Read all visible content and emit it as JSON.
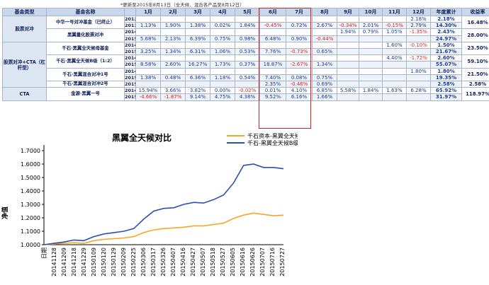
{
  "note": "*更新至2015年8月13日（全天候、混合各产品至8月12日）",
  "table": {
    "headers": [
      "基金类型",
      "基金名称",
      "",
      "1月",
      "2月",
      "3月",
      "4月",
      "5月",
      "6月",
      "7月",
      "8月",
      "9月",
      "10月",
      "11月",
      "12月",
      "年度累计",
      "收益率"
    ],
    "groups": [
      {
        "category": "股票对冲",
        "funds": [
          {
            "name": "中华一号对冲基金（已终止）",
            "ret": "16.48%",
            "rows": [
              {
                "year": "2012",
                "months": [
                  "",
                  "",
                  "",
                  "",
                  "",
                  "",
                  "",
                  "",
                  "",
                  "",
                  "",
                  "2.18%"
                ],
                "total": "2.18%"
              },
              {
                "year": "2013",
                "months": [
                  "1.13%",
                  "1.90%",
                  "1.38%",
                  "0.02%",
                  "1.84%",
                  "-0.45%",
                  "0.72%",
                  "2.67%",
                  "-0.34%",
                  "2.01%",
                  "-0.15%",
                  "2.79%"
                ],
                "total": "14.30%"
              }
            ]
          },
          {
            "name": "黑翼量化股票对冲",
            "ret": "28.00%",
            "rows": [
              {
                "year": "2014",
                "months": [
                  "",
                  "",
                  "",
                  "",
                  "",
                  "",
                  "",
                  "",
                  "1.94%",
                  "0.79%",
                  "1.05%",
                  "-1.35%"
                ],
                "total": "2.43%"
              },
              {
                "year": "2015",
                "months": [
                  "5.68%",
                  "2.13%",
                  "6.39%",
                  "0.75%",
                  "0.98%",
                  "6.48%",
                  "0.90%",
                  "-0.44%",
                  "",
                  "",
                  "",
                  ""
                ],
                "total": "24.97%"
              }
            ]
          }
        ]
      },
      {
        "category": "股票对冲+CTA（杠杆型）",
        "funds": [
          {
            "name": "千石·黑翼全天候母基金",
            "ret": "23.50%",
            "rows": [
              {
                "year": "2014",
                "months": [
                  "",
                  "",
                  "",
                  "",
                  "",
                  "",
                  "",
                  "",
                  "",
                  "",
                  "1.60%",
                  "-0.10%"
                ],
                "total": "1.50%"
              },
              {
                "year": "2015",
                "months": [
                  "3.25%",
                  "1.34%",
                  "6.31%",
                  "1.06%",
                  "0.53%",
                  "7.76%",
                  "-0.73%",
                  "0.65%",
                  "",
                  "",
                  "",
                  ""
                ],
                "total": "21.67%"
              }
            ]
          },
          {
            "name": "千石·黑翼全天候B级（1:2）",
            "ret": "59.10%",
            "rows": [
              {
                "year": "2014",
                "months": [
                  "",
                  "",
                  "",
                  "",
                  "",
                  "",
                  "",
                  "",
                  "",
                  "",
                  "4.40%",
                  "-1.72%"
                ],
                "total": "2.60%"
              },
              {
                "year": "2015",
                "months": [
                  "8.58%",
                  "2.60%",
                  "16.27%",
                  "1.73%",
                  "0.37%",
                  "18.87%",
                  "-2.67%",
                  "1.34%",
                  "",
                  "",
                  "",
                  ""
                ],
                "total": "55.07%"
              }
            ]
          },
          {
            "name": "千石·黑翼混合对冲1号",
            "ret": "21.50%",
            "rows": [
              {
                "year": "2014",
                "months": [
                  "",
                  "",
                  "",
                  "",
                  "",
                  "",
                  "",
                  "",
                  "",
                  "",
                  "",
                  "1.80%"
                ],
                "total": "1.80%"
              },
              {
                "year": "2015",
                "months": [
                  "1.38%",
                  "0.48%",
                  "6.36%",
                  "1.18%",
                  "0.54%",
                  "7.40%",
                  "0.08%",
                  "0.75%",
                  "",
                  "",
                  "",
                  ""
                ],
                "total": "19.35%"
              }
            ]
          },
          {
            "name": "千石·黑翼混合对冲2号",
            "ret": "2.58%",
            "rows": [
              {
                "year": "2015",
                "months": [
                  "",
                  "",
                  "",
                  "",
                  "",
                  "2.35%",
                  "-0.46%",
                  "0.69%",
                  "",
                  "",
                  "",
                  ""
                ],
                "total": "2.58%"
              }
            ]
          }
        ]
      },
      {
        "category": "CTA",
        "funds": [
          {
            "name": "金源·黑翼一号",
            "ret": "118.97%",
            "rows": [
              {
                "year": "2014",
                "months": [
                  "15.94%",
                  "3.66%",
                  "3.82%",
                  "0.00%",
                  "-0.02%",
                  "0.01%",
                  "4.10%",
                  "6.85%",
                  "5.58%",
                  "1.84%",
                  "1.63%",
                  "6.28%"
                ],
                "total": "65.92%"
              },
              {
                "year": "2015",
                "months": [
                  "-4.66%",
                  "-1.87%",
                  "9.14%",
                  "4.75%",
                  "4.38%",
                  "9.52%",
                  "6.16%",
                  "1.66%",
                  "",
                  "",
                  "",
                  ""
                ],
                "total": "31.97%"
              }
            ]
          }
        ]
      }
    ]
  },
  "chart_data": {
    "type": "line",
    "title": "黑翼全天候对比",
    "ylabel": "净值",
    "xlabel": "",
    "first_tick_label": "日期",
    "ylim": [
      1.0,
      1.7
    ],
    "yticks": [
      "1.0000",
      "1.1000",
      "1.2000",
      "1.3000",
      "1.4000",
      "1.5000",
      "1.6000",
      "1.7000"
    ],
    "x_tick_labels": [
      "20141128",
      "20141209",
      "20141218",
      "20141229",
      "20150109",
      "20150120",
      "20150129",
      "20150209",
      "20150225",
      "20150306",
      "20150317",
      "20150326",
      "20150407",
      "20150416",
      "20150427",
      "20150507",
      "20150518",
      "20150527",
      "20150605",
      "20150616",
      "20150626",
      "20150707",
      "20150716",
      "20150727"
    ],
    "legend_position": "top-center",
    "series": [
      {
        "name": "千石资本-黑翼全天候",
        "color": "#f5a623",
        "x_index": [
          0,
          1,
          2,
          3,
          4,
          5,
          6,
          7,
          8,
          9,
          10,
          11,
          12,
          13,
          14,
          15,
          16,
          17,
          18,
          19,
          20,
          21,
          22,
          23,
          24
        ],
        "values": [
          1.0,
          1.005,
          1.01,
          1.015,
          1.01,
          1.03,
          1.04,
          1.045,
          1.05,
          1.06,
          1.09,
          1.11,
          1.12,
          1.125,
          1.13,
          1.14,
          1.14,
          1.15,
          1.16,
          1.195,
          1.22,
          1.235,
          1.225,
          1.215,
          1.22
        ]
      },
      {
        "name": "千石-黑翼全天候B级",
        "color": "#2a4fb5",
        "x_index": [
          0,
          1,
          2,
          3,
          4,
          5,
          6,
          7,
          8,
          9,
          10,
          11,
          12,
          13,
          14,
          15,
          16,
          17,
          18,
          19,
          20,
          21,
          22,
          23,
          24
        ],
        "values": [
          1.0,
          1.01,
          1.02,
          1.035,
          1.03,
          1.06,
          1.08,
          1.09,
          1.1,
          1.12,
          1.19,
          1.25,
          1.27,
          1.275,
          1.3,
          1.315,
          1.31,
          1.335,
          1.37,
          1.46,
          1.59,
          1.6,
          1.575,
          1.575,
          1.565
        ]
      }
    ]
  }
}
